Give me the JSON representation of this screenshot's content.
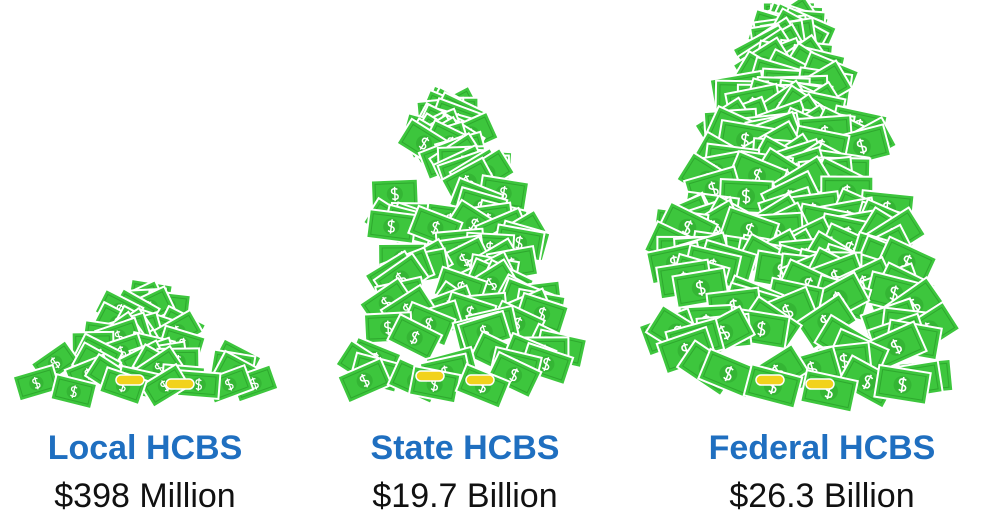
{
  "items": [
    {
      "label": "Local HCBS",
      "amount": "$398 Million"
    },
    {
      "label": "State HCBS",
      "amount": "$19.7 Billion"
    },
    {
      "label": "Federal HCBS",
      "amount": "$26.3 Billion"
    }
  ]
}
